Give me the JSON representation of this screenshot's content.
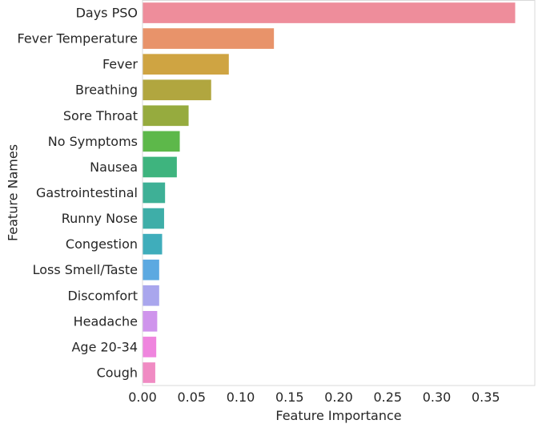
{
  "chart_data": {
    "type": "bar",
    "orientation": "horizontal",
    "categories": [
      "Days PSO",
      "Fever Temperature",
      "Fever",
      "Breathing",
      "Sore Throat",
      "No Symptoms",
      "Nausea",
      "Gastrointestinal",
      "Runny Nose",
      "Congestion",
      "Loss Smell/Taste",
      "Discomfort",
      "Headache",
      "Age 20-34",
      "Cough"
    ],
    "values": [
      0.38,
      0.134,
      0.088,
      0.07,
      0.047,
      0.038,
      0.035,
      0.023,
      0.022,
      0.02,
      0.017,
      0.017,
      0.015,
      0.014,
      0.013
    ],
    "colors": [
      "#ee8d9b",
      "#e8936a",
      "#cfa442",
      "#b1a63f",
      "#96ab3e",
      "#5db84a",
      "#3eb47e",
      "#3eb096",
      "#3eaea8",
      "#3fadbb",
      "#5ca9e1",
      "#a9a6ed",
      "#cf94ec",
      "#ef85de",
      "#f08bc3"
    ],
    "title": "",
    "xlabel": "Feature Importance",
    "ylabel": "Feature Names",
    "xlim": [
      0,
      0.4
    ],
    "xticks": [
      0.0,
      0.05,
      0.1,
      0.15,
      0.2,
      0.25,
      0.3,
      0.35
    ],
    "xtick_labels": [
      "0.00",
      "0.05",
      "0.10",
      "0.15",
      "0.20",
      "0.25",
      "0.30",
      "0.35"
    ],
    "grid": false,
    "frame_color": "#d9d9d9"
  }
}
